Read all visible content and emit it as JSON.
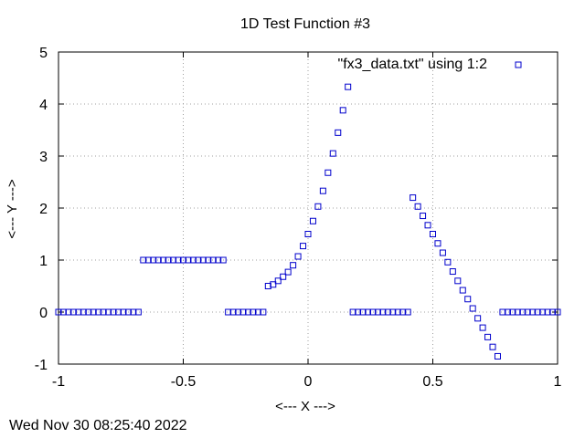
{
  "chart_data": {
    "type": "scatter",
    "title": "1D Test Function #3",
    "xlabel": "<--- X --->",
    "ylabel": "<--- Y --->",
    "xlim": [
      -1,
      1
    ],
    "ylim": [
      -1,
      5
    ],
    "xticks": [
      -1,
      -0.5,
      0,
      0.5,
      1
    ],
    "xtick_labels": [
      "-1",
      "-0.5",
      "0",
      "0.5",
      "1"
    ],
    "yticks": [
      -1,
      0,
      1,
      2,
      3,
      4,
      5
    ],
    "ytick_labels": [
      "-1",
      "0",
      "1",
      "2",
      "3",
      "4",
      "5"
    ],
    "grid": true,
    "legend_position": "top-right",
    "marker": "open-square",
    "color": "#0000cc",
    "series": [
      {
        "name": "\"fx3_data.txt\" using 1:2",
        "x": [
          -1,
          -0.98,
          -0.96,
          -0.94,
          -0.92,
          -0.9,
          -0.88,
          -0.86,
          -0.84,
          -0.82,
          -0.8,
          -0.78,
          -0.76,
          -0.74,
          -0.72,
          -0.7,
          -0.68,
          -0.66,
          -0.64,
          -0.62,
          -0.6,
          -0.58,
          -0.56,
          -0.54,
          -0.52,
          -0.5,
          -0.48,
          -0.46,
          -0.44,
          -0.42,
          -0.4,
          -0.38,
          -0.36,
          -0.34,
          -0.32,
          -0.3,
          -0.28,
          -0.26,
          -0.24,
          -0.22,
          -0.2,
          -0.18,
          -0.16,
          -0.14,
          -0.12,
          -0.1,
          -0.08,
          -0.06,
          -0.04,
          -0.02,
          0,
          0.02,
          0.04,
          0.06,
          0.08,
          0.1,
          0.12,
          0.14,
          0.16,
          0.18,
          0.2,
          0.22,
          0.24,
          0.26,
          0.28,
          0.3,
          0.32,
          0.34,
          0.36,
          0.38,
          0.4,
          0.42,
          0.44,
          0.46,
          0.48,
          0.5,
          0.52,
          0.54,
          0.56,
          0.58,
          0.6,
          0.62,
          0.64,
          0.66,
          0.68,
          0.7,
          0.72,
          0.74,
          0.76,
          0.78,
          0.8,
          0.82,
          0.84,
          0.86,
          0.88,
          0.9,
          0.92,
          0.94,
          0.96,
          0.98,
          1
        ],
        "y": [
          0,
          0,
          0,
          0,
          0,
          0,
          0,
          0,
          0,
          0,
          0,
          0,
          0,
          0,
          0,
          0,
          0,
          1,
          1,
          1,
          1,
          1,
          1,
          1,
          1,
          1,
          1,
          1,
          1,
          1,
          1,
          1,
          1,
          1,
          0,
          0,
          0,
          0,
          0,
          0,
          0,
          0,
          0.5,
          0.53,
          0.6,
          0.68,
          0.77,
          0.9,
          1.07,
          1.27,
          1.5,
          1.75,
          2.03,
          2.33,
          2.68,
          3.05,
          3.45,
          3.88,
          4.33,
          0,
          0,
          0,
          0,
          0,
          0,
          0,
          0,
          0,
          0,
          0,
          0,
          2.2,
          2.03,
          1.85,
          1.67,
          1.5,
          1.32,
          1.14,
          0.96,
          0.78,
          0.6,
          0.42,
          0.25,
          0.07,
          -0.12,
          -0.3,
          -0.48,
          -0.67,
          -0.85,
          0,
          0,
          0,
          0,
          0,
          0,
          0,
          0,
          0,
          0,
          0,
          0
        ]
      }
    ]
  },
  "footer": {
    "timestamp": "Wed Nov 30 08:25:40 2022"
  }
}
